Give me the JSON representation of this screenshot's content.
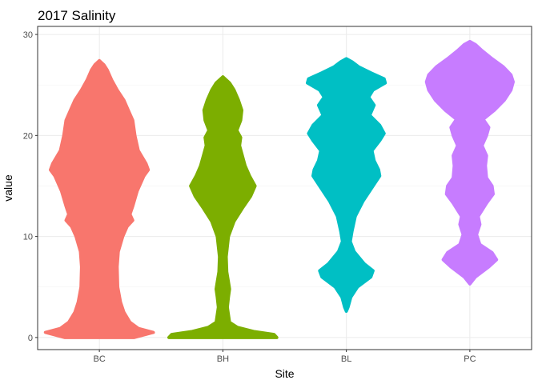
{
  "chart_data": {
    "type": "violin",
    "title": "2017 Salinity",
    "xlabel": "Site",
    "ylabel": "value",
    "categories": [
      "BC",
      "BH",
      "BL",
      "PC"
    ],
    "ylim": [
      -1.2,
      30.8
    ],
    "yticks": [
      0,
      10,
      20,
      30
    ],
    "grid": true,
    "legend": "none",
    "colors": {
      "BC": "#F8766D",
      "BH": "#7CAE00",
      "BL": "#00BFC4",
      "PC": "#C77CFF"
    },
    "series": [
      {
        "category": "BC",
        "min": 0,
        "max": 27.4,
        "profile": [
          [
            0,
            0.62
          ],
          [
            0.5,
            0.97
          ],
          [
            0.9,
            0.7
          ],
          [
            1.5,
            0.55
          ],
          [
            2.5,
            0.44
          ],
          [
            3.5,
            0.38
          ],
          [
            5,
            0.33
          ],
          [
            7,
            0.32
          ],
          [
            8.5,
            0.34
          ],
          [
            10,
            0.42
          ],
          [
            11,
            0.5
          ],
          [
            11.6,
            0.6
          ],
          [
            12.2,
            0.55
          ],
          [
            13,
            0.6
          ],
          [
            14.5,
            0.68
          ],
          [
            16,
            0.8
          ],
          [
            16.6,
            0.88
          ],
          [
            17.2,
            0.84
          ],
          [
            18.5,
            0.7
          ],
          [
            20,
            0.64
          ],
          [
            21.5,
            0.6
          ],
          [
            22.5,
            0.52
          ],
          [
            23.5,
            0.44
          ],
          [
            24.5,
            0.32
          ],
          [
            25.5,
            0.22
          ],
          [
            26.5,
            0.14
          ],
          [
            27,
            0.08
          ],
          [
            27.4,
            0
          ]
        ]
      },
      {
        "category": "BH",
        "min": 0,
        "max": 25.8,
        "profile": [
          [
            0,
            0.97
          ],
          [
            0.3,
            0.92
          ],
          [
            0.6,
            0.55
          ],
          [
            1,
            0.26
          ],
          [
            1.5,
            0.12
          ],
          [
            3,
            0.08
          ],
          [
            4,
            0.1
          ],
          [
            4.8,
            0.12
          ],
          [
            5.5,
            0.1
          ],
          [
            6.5,
            0.07
          ],
          [
            8,
            0.06
          ],
          [
            10,
            0.1
          ],
          [
            11.5,
            0.2
          ],
          [
            12.8,
            0.35
          ],
          [
            14,
            0.5
          ],
          [
            15,
            0.58
          ],
          [
            16,
            0.48
          ],
          [
            17,
            0.4
          ],
          [
            18.2,
            0.34
          ],
          [
            19,
            0.3
          ],
          [
            19.8,
            0.32
          ],
          [
            20.5,
            0.25
          ],
          [
            21.5,
            0.32
          ],
          [
            22.5,
            0.34
          ],
          [
            23.5,
            0.28
          ],
          [
            24.5,
            0.2
          ],
          [
            25.2,
            0.12
          ],
          [
            25.8,
            0
          ]
        ]
      },
      {
        "category": "BL",
        "min": 2.6,
        "max": 27.6,
        "profile": [
          [
            2.6,
            0
          ],
          [
            3,
            0.03
          ],
          [
            4,
            0.08
          ],
          [
            5,
            0.2
          ],
          [
            6,
            0.44
          ],
          [
            6.6,
            0.48
          ],
          [
            7.3,
            0.32
          ],
          [
            8.5,
            0.14
          ],
          [
            9.5,
            0.07
          ],
          [
            10.5,
            0.1
          ],
          [
            12,
            0.16
          ],
          [
            13.5,
            0.3
          ],
          [
            15,
            0.48
          ],
          [
            16,
            0.6
          ],
          [
            16.6,
            0.58
          ],
          [
            17.5,
            0.5
          ],
          [
            18.5,
            0.46
          ],
          [
            19.5,
            0.6
          ],
          [
            20.2,
            0.68
          ],
          [
            21,
            0.6
          ],
          [
            22,
            0.42
          ],
          [
            23,
            0.5
          ],
          [
            23.8,
            0.4
          ],
          [
            24.5,
            0.48
          ],
          [
            25.2,
            0.7
          ],
          [
            25.6,
            0.68
          ],
          [
            26.2,
            0.44
          ],
          [
            26.8,
            0.22
          ],
          [
            27.3,
            0.1
          ],
          [
            27.6,
            0
          ]
        ]
      },
      {
        "category": "PC",
        "min": 5.3,
        "max": 29.3,
        "profile": [
          [
            5.3,
            0
          ],
          [
            6,
            0.1
          ],
          [
            7,
            0.34
          ],
          [
            7.7,
            0.48
          ],
          [
            8.4,
            0.4
          ],
          [
            9.2,
            0.18
          ],
          [
            10.2,
            0.12
          ],
          [
            11.2,
            0.18
          ],
          [
            12,
            0.15
          ],
          [
            13.3,
            0.3
          ],
          [
            14.2,
            0.42
          ],
          [
            15,
            0.4
          ],
          [
            15.8,
            0.3
          ],
          [
            17,
            0.28
          ],
          [
            18,
            0.3
          ],
          [
            19,
            0.22
          ],
          [
            20,
            0.3
          ],
          [
            20.8,
            0.34
          ],
          [
            21.6,
            0.24
          ],
          [
            22.5,
            0.44
          ],
          [
            23.5,
            0.62
          ],
          [
            24.5,
            0.74
          ],
          [
            25.3,
            0.78
          ],
          [
            26,
            0.74
          ],
          [
            26.8,
            0.6
          ],
          [
            27.6,
            0.4
          ],
          [
            28.4,
            0.22
          ],
          [
            29,
            0.1
          ],
          [
            29.3,
            0
          ]
        ]
      }
    ]
  }
}
